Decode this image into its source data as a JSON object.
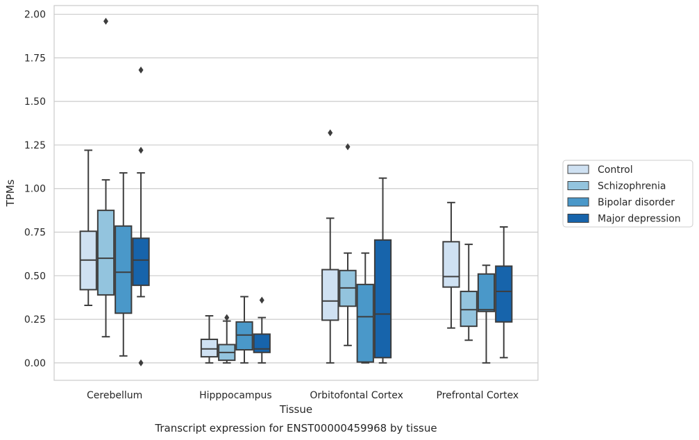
{
  "caption": "Transcript expression for ENST00000459968 by tissue",
  "chart_data": {
    "type": "boxplot",
    "xlabel": "Tissue",
    "ylabel": "TPMs",
    "ylim": [
      -0.1,
      2.05
    ],
    "yticks": [
      "0.00",
      "0.25",
      "0.50",
      "0.75",
      "1.00",
      "1.25",
      "1.50",
      "1.75",
      "2.00"
    ],
    "ytick_values": [
      0,
      0.25,
      0.5,
      0.75,
      1.0,
      1.25,
      1.5,
      1.75,
      2.0
    ],
    "grid": "horizontal",
    "legend_position": "right",
    "categories": [
      "Cerebellum",
      "Hipppocampus",
      "Orbitofontal Cortex",
      "Prefrontal Cortex"
    ],
    "series": [
      {
        "name": "Control",
        "color": "#cfe1f2",
        "boxes": [
          {
            "whislo": 0.33,
            "q1": 0.42,
            "med": 0.59,
            "q3": 0.755,
            "whishi": 1.22,
            "fliers": []
          },
          {
            "whislo": 0.0,
            "q1": 0.035,
            "med": 0.08,
            "q3": 0.135,
            "whishi": 0.27,
            "fliers": []
          },
          {
            "whislo": 0.0,
            "q1": 0.245,
            "med": 0.355,
            "q3": 0.535,
            "whishi": 0.83,
            "fliers": [
              1.32
            ]
          },
          {
            "whislo": 0.2,
            "q1": 0.435,
            "med": 0.495,
            "q3": 0.695,
            "whishi": 0.92,
            "fliers": []
          }
        ]
      },
      {
        "name": "Schizophrenia",
        "color": "#93c4de",
        "boxes": [
          {
            "whislo": 0.15,
            "q1": 0.39,
            "med": 0.6,
            "q3": 0.875,
            "whishi": 1.05,
            "fliers": [
              1.96
            ]
          },
          {
            "whislo": 0.0,
            "q1": 0.015,
            "med": 0.06,
            "q3": 0.105,
            "whishi": 0.24,
            "fliers": [
              0.26
            ]
          },
          {
            "whislo": 0.1,
            "q1": 0.325,
            "med": 0.43,
            "q3": 0.53,
            "whishi": 0.63,
            "fliers": [
              1.24
            ]
          },
          {
            "whislo": 0.13,
            "q1": 0.21,
            "med": 0.305,
            "q3": 0.41,
            "whishi": 0.68,
            "fliers": []
          }
        ]
      },
      {
        "name": "Bipolar disorder",
        "color": "#4a98c9",
        "boxes": [
          {
            "whislo": 0.04,
            "q1": 0.285,
            "med": 0.52,
            "q3": 0.785,
            "whishi": 1.09,
            "fliers": []
          },
          {
            "whislo": 0.0,
            "q1": 0.075,
            "med": 0.16,
            "q3": 0.235,
            "whishi": 0.38,
            "fliers": []
          },
          {
            "whislo": 0.0,
            "q1": 0.005,
            "med": 0.265,
            "q3": 0.45,
            "whishi": 0.63,
            "fliers": []
          },
          {
            "whislo": 0.0,
            "q1": 0.295,
            "med": 0.305,
            "q3": 0.51,
            "whishi": 0.56,
            "fliers": []
          }
        ]
      },
      {
        "name": "Major depression",
        "color": "#1764ab",
        "boxes": [
          {
            "whislo": 0.38,
            "q1": 0.445,
            "med": 0.59,
            "q3": 0.715,
            "whishi": 1.09,
            "fliers": [
              1.68,
              1.22,
              0.0
            ]
          },
          {
            "whislo": 0.0,
            "q1": 0.06,
            "med": 0.08,
            "q3": 0.165,
            "whishi": 0.26,
            "fliers": [
              0.36
            ]
          },
          {
            "whislo": 0.0,
            "q1": 0.03,
            "med": 0.28,
            "q3": 0.705,
            "whishi": 1.06,
            "fliers": []
          },
          {
            "whislo": 0.03,
            "q1": 0.235,
            "med": 0.41,
            "q3": 0.555,
            "whishi": 0.78,
            "fliers": []
          }
        ]
      }
    ]
  }
}
